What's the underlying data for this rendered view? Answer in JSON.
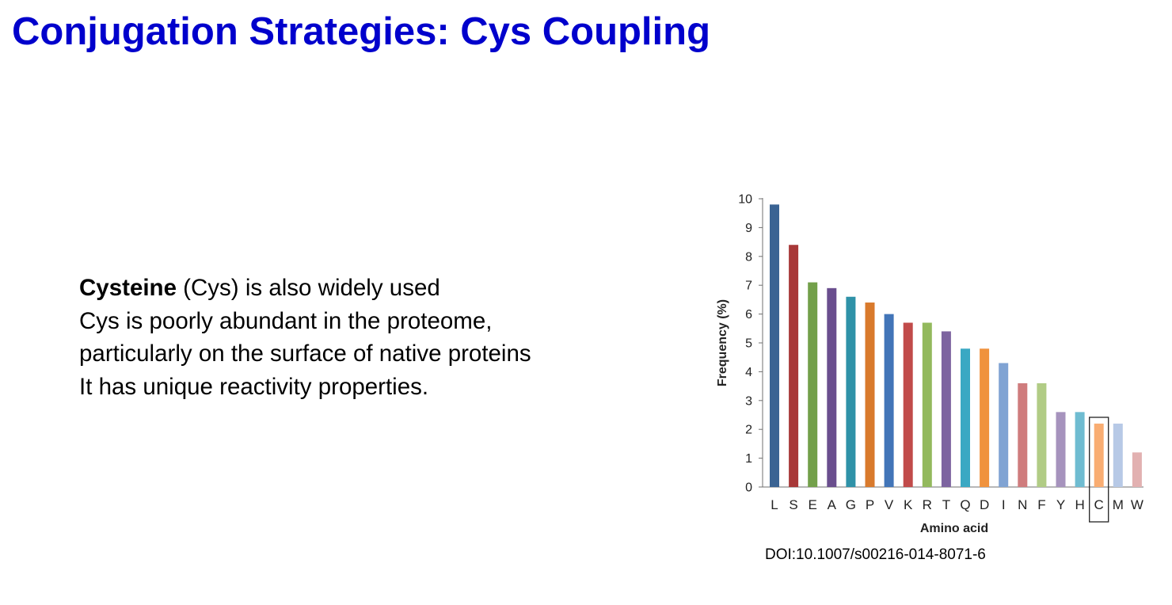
{
  "slide": {
    "title": "Conjugation Strategies: Cys Coupling",
    "title_color": "#0000cc"
  },
  "body": {
    "line1_bold": "Cysteine",
    "line1_rest": " (Cys) is also widely used",
    "line2": "Cys is poorly abundant in the proteome,",
    "line3": "particularly on the surface of native proteins",
    "line4": "It has unique reactivity properties."
  },
  "citation": {
    "doi": "DOI:10.1007/s00216-014-8071-6"
  },
  "chart_data": {
    "type": "bar",
    "title": "",
    "xlabel": "Amino acid",
    "ylabel": "Frequency (%)",
    "ylim": [
      0,
      10
    ],
    "yticks": [
      0,
      1,
      2,
      3,
      4,
      5,
      6,
      7,
      8,
      9,
      10
    ],
    "grid": false,
    "categories": [
      "L",
      "S",
      "E",
      "A",
      "G",
      "P",
      "V",
      "K",
      "R",
      "T",
      "Q",
      "D",
      "I",
      "N",
      "F",
      "Y",
      "H",
      "C",
      "M",
      "W"
    ],
    "values": [
      9.8,
      8.4,
      7.1,
      6.9,
      6.6,
      6.4,
      6.0,
      5.7,
      5.7,
      5.4,
      4.8,
      4.8,
      4.3,
      3.6,
      3.6,
      2.6,
      2.6,
      2.2,
      2.2,
      1.2
    ],
    "colors": [
      "#3a6393",
      "#a83838",
      "#73a04a",
      "#6a4e8e",
      "#2f92a8",
      "#d97a2c",
      "#4275b8",
      "#c14b4a",
      "#93b95d",
      "#7d64a0",
      "#3aa8c3",
      "#f0923d",
      "#80a3d3",
      "#cf7c7d",
      "#b1cc85",
      "#a693bd",
      "#6fbcd1",
      "#f9ad72",
      "#b7c9e6",
      "#e2b1b1"
    ],
    "highlight_category": "C"
  }
}
